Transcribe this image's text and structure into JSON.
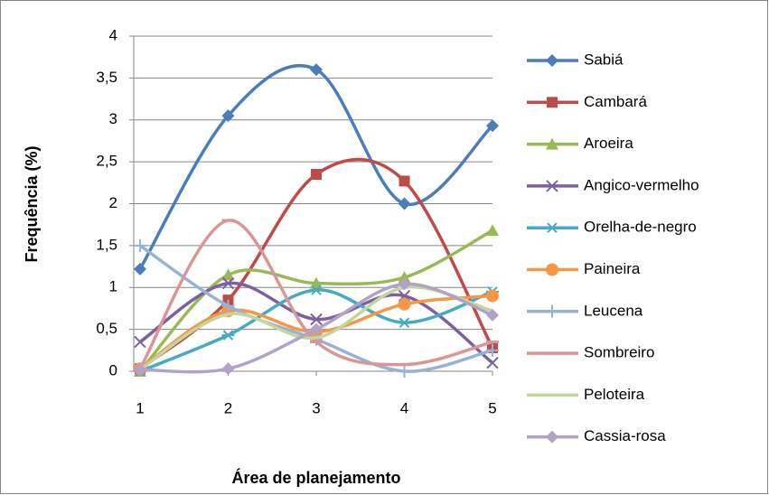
{
  "chart_data": {
    "type": "line",
    "smooth": true,
    "x_label": "Área de planejamento",
    "y_label": "Frequência (%)",
    "categories": [
      "1",
      "2",
      "3",
      "4",
      "5"
    ],
    "ylim": [
      0,
      4
    ],
    "yticks": [
      0,
      {
        "value": 0.5,
        "label": "0,5"
      },
      1,
      {
        "value": 1.5,
        "label": "1,5"
      },
      2,
      {
        "value": 2.5,
        "label": "2,5"
      },
      3,
      {
        "value": 3.5,
        "label": "3,5"
      },
      4
    ],
    "grid": true,
    "legend": "right",
    "series": [
      {
        "name": "Sabiá",
        "color": "#4a7ebb",
        "marker": "diamond",
        "values": [
          1.22,
          3.05,
          3.6,
          2.0,
          2.93
        ]
      },
      {
        "name": "Cambará",
        "color": "#be4b48",
        "marker": "square",
        "values": [
          0.03,
          0.85,
          2.35,
          2.27,
          0.28
        ]
      },
      {
        "name": "Aroeira",
        "color": "#98b954",
        "marker": "triangle",
        "values": [
          0,
          1.15,
          1.05,
          1.12,
          1.68
        ]
      },
      {
        "name": "Angico-vermelho",
        "color": "#7d60a0",
        "marker": "x",
        "values": [
          0.35,
          1.05,
          0.62,
          0.9,
          0.1
        ]
      },
      {
        "name": "Orelha-de-negro",
        "color": "#46aac5",
        "marker": "star",
        "values": [
          0,
          0.43,
          0.97,
          0.58,
          0.95
        ]
      },
      {
        "name": "Paineira",
        "color": "#f79646",
        "marker": "circle",
        "values": [
          0.03,
          0.72,
          0.47,
          0.8,
          0.9
        ]
      },
      {
        "name": "Leucena",
        "color": "#95b3d7",
        "marker": "plus",
        "values": [
          1.5,
          0.78,
          0.38,
          0,
          0.25
        ]
      },
      {
        "name": "Sombreiro",
        "color": "#da9694",
        "marker": "dash",
        "values": [
          0.03,
          1.8,
          0.35,
          0.08,
          0.35
        ]
      },
      {
        "name": "Peloteira",
        "color": "#c3d69b",
        "marker": "none",
        "values": [
          0.02,
          0.68,
          0.4,
          1.0,
          0.72
        ]
      },
      {
        "name": "Cassia-rosa",
        "color": "#b3a2c7",
        "marker": "diamond",
        "values": [
          0.02,
          0.03,
          0.5,
          1.04,
          0.67
        ]
      }
    ]
  }
}
